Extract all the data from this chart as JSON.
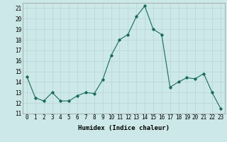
{
  "x": [
    0,
    1,
    2,
    3,
    4,
    5,
    6,
    7,
    8,
    9,
    10,
    11,
    12,
    13,
    14,
    15,
    16,
    17,
    18,
    19,
    20,
    21,
    22,
    23
  ],
  "y": [
    14.5,
    12.5,
    12.2,
    13.0,
    12.2,
    12.2,
    12.7,
    13.0,
    12.9,
    14.2,
    16.5,
    18.0,
    18.5,
    20.2,
    21.2,
    19.0,
    18.5,
    13.5,
    14.0,
    14.4,
    14.3,
    14.8,
    13.0,
    11.5
  ],
  "line_color": "#1a6b5a",
  "marker": "D",
  "marker_size": 1.8,
  "bg_color": "#cce8e8",
  "grid_color": "#b8d4d4",
  "xlabel": "Humidex (Indice chaleur)",
  "xlim": [
    -0.5,
    23.5
  ],
  "ylim": [
    11,
    21.5
  ],
  "yticks": [
    11,
    12,
    13,
    14,
    15,
    16,
    17,
    18,
    19,
    20,
    21
  ],
  "xticks": [
    0,
    1,
    2,
    3,
    4,
    5,
    6,
    7,
    8,
    9,
    10,
    11,
    12,
    13,
    14,
    15,
    16,
    17,
    18,
    19,
    20,
    21,
    22,
    23
  ],
  "label_fontsize": 6.5,
  "tick_fontsize": 5.5
}
